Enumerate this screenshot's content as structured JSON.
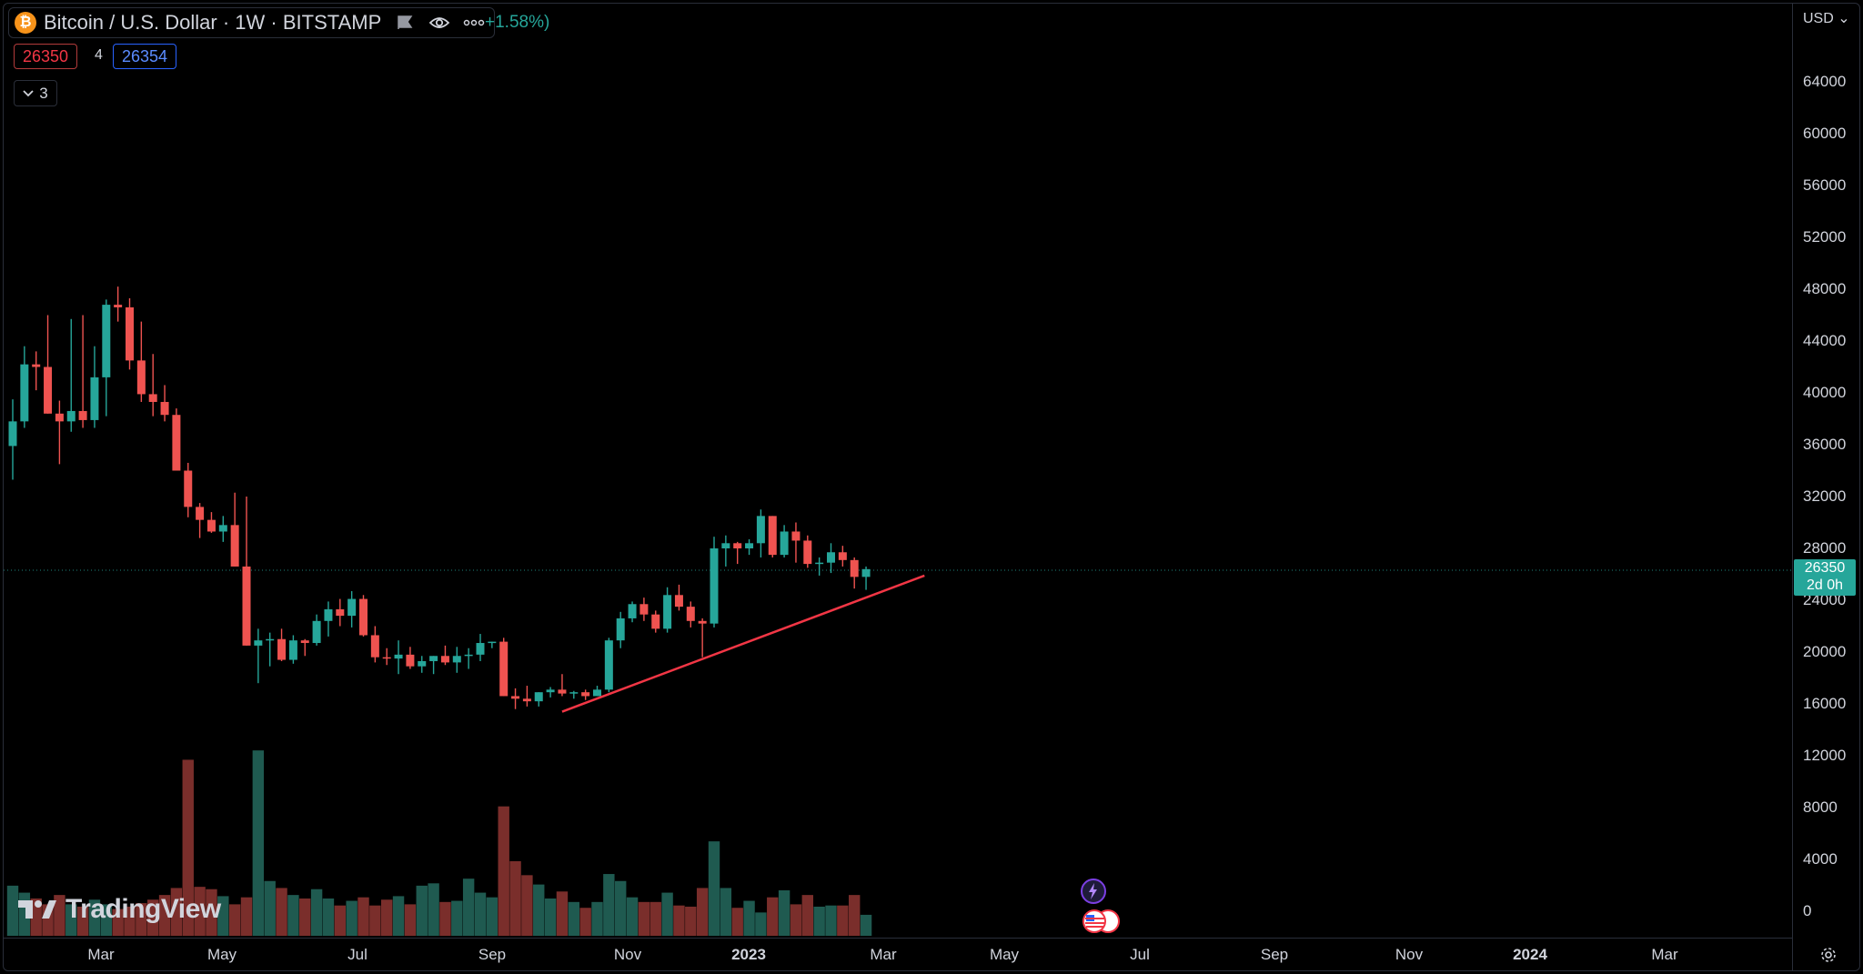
{
  "chart_data": {
    "type": "candlestick",
    "symbol": "Bitcoin / U.S. Dollar",
    "interval": "1W",
    "exchange": "BITSTAMP",
    "change": "+1.58%)",
    "bid": "26350",
    "spread": "4",
    "ask": "26354",
    "indicators_collapsed_count": "3",
    "currency": "USD",
    "last_price": "26350",
    "countdown": "2d 0h",
    "ylim": [
      -1000,
      66000
    ],
    "y_ticks": [
      "64000",
      "60000",
      "56000",
      "52000",
      "48000",
      "44000",
      "40000",
      "36000",
      "32000",
      "28000",
      "24000",
      "20000",
      "16000",
      "12000",
      "8000",
      "4000",
      "0"
    ],
    "x_ticks": [
      {
        "label": "Mar",
        "bold": false
      },
      {
        "label": "May",
        "bold": false
      },
      {
        "label": "Jul",
        "bold": false
      },
      {
        "label": "Sep",
        "bold": false
      },
      {
        "label": "Nov",
        "bold": false
      },
      {
        "label": "2023",
        "bold": true
      },
      {
        "label": "Mar",
        "bold": false
      },
      {
        "label": "May",
        "bold": false
      },
      {
        "label": "Jul",
        "bold": false
      },
      {
        "label": "Sep",
        "bold": false
      },
      {
        "label": "Nov",
        "bold": false
      },
      {
        "label": "2024",
        "bold": true
      },
      {
        "label": "Mar",
        "bold": false
      }
    ],
    "candles": [
      [
        35900,
        33300,
        39500,
        37800,
        4300
      ],
      [
        37800,
        37300,
        43600,
        42200,
        3700
      ],
      [
        42200,
        40200,
        43200,
        42000,
        3200
      ],
      [
        42000,
        38400,
        46000,
        38400,
        2700
      ],
      [
        38400,
        34500,
        39400,
        37800,
        3500
      ],
      [
        37800,
        37000,
        45700,
        38600,
        2700
      ],
      [
        38600,
        37300,
        46000,
        37900,
        2500
      ],
      [
        37900,
        37300,
        43600,
        41200,
        3100
      ],
      [
        41200,
        38200,
        47200,
        46800,
        2700
      ],
      [
        46800,
        45500,
        48200,
        46600,
        2300
      ],
      [
        46600,
        41800,
        47300,
        42500,
        2500
      ],
      [
        42500,
        39300,
        45500,
        39900,
        2800
      ],
      [
        39900,
        38200,
        43000,
        39300,
        3100
      ],
      [
        39300,
        37800,
        40600,
        38300,
        3500
      ],
      [
        38300,
        35800,
        38800,
        34000,
        4100
      ],
      [
        34000,
        30400,
        34600,
        31200,
        15100
      ],
      [
        31200,
        28800,
        31500,
        30200,
        4200
      ],
      [
        30200,
        29200,
        30800,
        29300,
        4000
      ],
      [
        29300,
        28500,
        30500,
        29800,
        3400
      ],
      [
        29800,
        28700,
        32300,
        26600,
        2700
      ],
      [
        26600,
        26600,
        32000,
        20500,
        3300
      ],
      [
        20500,
        17600,
        21800,
        20900,
        15900
      ],
      [
        20900,
        18900,
        21500,
        21000,
        4700
      ],
      [
        21000,
        19300,
        21800,
        19400,
        4100
      ],
      [
        19400,
        19100,
        21300,
        20900,
        3500
      ],
      [
        20900,
        19700,
        21000,
        20700,
        3200
      ],
      [
        20700,
        20500,
        22900,
        22400,
        4000
      ],
      [
        22400,
        21200,
        23900,
        23300,
        3200
      ],
      [
        23300,
        22000,
        24100,
        22800,
        2600
      ],
      [
        22800,
        21900,
        24700,
        24100,
        3000
      ],
      [
        24100,
        21200,
        24400,
        21300,
        3300
      ],
      [
        21300,
        19200,
        22000,
        19600,
        2600
      ],
      [
        19600,
        19000,
        20300,
        19500,
        3100
      ],
      [
        19500,
        18300,
        20900,
        19800,
        3400
      ],
      [
        19800,
        18700,
        20400,
        18900,
        2700
      ],
      [
        18900,
        18400,
        19700,
        19300,
        4300
      ],
      [
        19300,
        18300,
        19600,
        19700,
        4500
      ],
      [
        19700,
        19000,
        20500,
        19200,
        2900
      ],
      [
        19200,
        18400,
        20400,
        19700,
        3000
      ],
      [
        19700,
        18700,
        20300,
        19800,
        4900
      ],
      [
        19800,
        19300,
        21400,
        20700,
        3700
      ],
      [
        20700,
        20300,
        20800,
        20800,
        3300
      ],
      [
        20800,
        16900,
        21100,
        16600,
        11100
      ],
      [
        16600,
        15600,
        17200,
        16400,
        6400
      ],
      [
        16400,
        15800,
        17400,
        16200,
        5200
      ],
      [
        16200,
        15800,
        16700,
        16900,
        4400
      ],
      [
        16900,
        16500,
        17300,
        17100,
        3200
      ],
      [
        17100,
        16600,
        18300,
        16800,
        3800
      ],
      [
        16800,
        16400,
        17000,
        16900,
        2900
      ],
      [
        16900,
        16300,
        17100,
        16600,
        2400
      ],
      [
        16600,
        16600,
        17400,
        17100,
        2900
      ],
      [
        17100,
        16900,
        21100,
        20900,
        5300
      ],
      [
        20900,
        20300,
        23100,
        22600,
        4700
      ],
      [
        22600,
        22300,
        23900,
        23700,
        3300
      ],
      [
        23700,
        22400,
        24200,
        22900,
        2900
      ],
      [
        22900,
        21500,
        23200,
        21800,
        2900
      ],
      [
        21800,
        21500,
        25000,
        24400,
        3700
      ],
      [
        24400,
        23200,
        25200,
        23500,
        2600
      ],
      [
        23500,
        21900,
        23900,
        22400,
        2500
      ],
      [
        22400,
        19600,
        22600,
        22200,
        4100
      ],
      [
        22200,
        21900,
        28900,
        28000,
        8100
      ],
      [
        28000,
        26600,
        29000,
        28400,
        4100
      ],
      [
        28400,
        26800,
        28500,
        28000,
        2400
      ],
      [
        28000,
        27500,
        28700,
        28400,
        3000
      ],
      [
        28400,
        27300,
        31000,
        30500,
        2000
      ],
      [
        30500,
        27300,
        30500,
        27500,
        3300
      ],
      [
        27500,
        27300,
        29800,
        29300,
        3900
      ],
      [
        29300,
        26900,
        30000,
        28600,
        2700
      ],
      [
        28600,
        26500,
        29000,
        26800,
        3500
      ],
      [
        26800,
        25900,
        27300,
        26900,
        2500
      ],
      [
        26900,
        26100,
        28400,
        27700,
        2600
      ],
      [
        27700,
        26600,
        28200,
        27100,
        2600
      ],
      [
        27100,
        24900,
        27300,
        25800,
        3500
      ],
      [
        25800,
        24800,
        26600,
        26400,
        1800
      ]
    ],
    "trendline": [
      [
        47,
        15400
      ],
      [
        78,
        25900
      ]
    ]
  }
}
